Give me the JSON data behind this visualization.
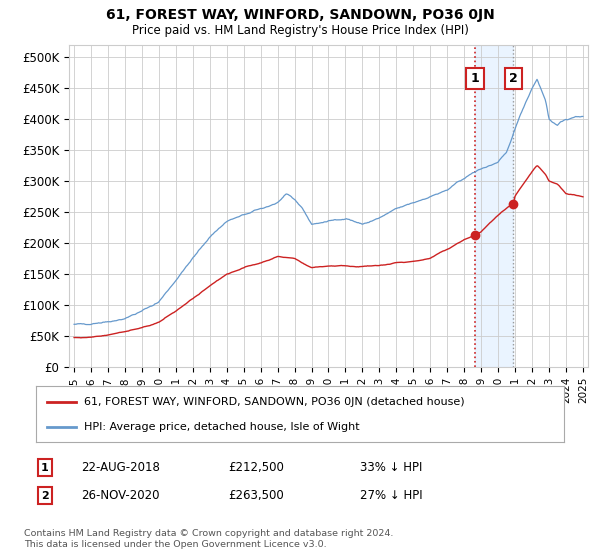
{
  "title": "61, FOREST WAY, WINFORD, SANDOWN, PO36 0JN",
  "subtitle": "Price paid vs. HM Land Registry's House Price Index (HPI)",
  "legend_line1": "61, FOREST WAY, WINFORD, SANDOWN, PO36 0JN (detached house)",
  "legend_line2": "HPI: Average price, detached house, Isle of Wight",
  "annotation1": {
    "label": "1",
    "date": "22-AUG-2018",
    "price": "£212,500",
    "hpi": "33% ↓ HPI",
    "year": 2018.64,
    "value": 212500
  },
  "annotation2": {
    "label": "2",
    "date": "26-NOV-2020",
    "price": "£263,500",
    "hpi": "27% ↓ HPI",
    "year": 2020.9,
    "value": 263500
  },
  "footer": "Contains HM Land Registry data © Crown copyright and database right 2024.\nThis data is licensed under the Open Government Licence v3.0.",
  "hpi_color": "#6699cc",
  "price_color": "#cc2222",
  "annotation_box_color": "#cc2222",
  "vline1_color": "#cc2222",
  "vline2_color": "#999999",
  "shaded_color": "#ddeeff",
  "ylim": [
    0,
    520000
  ],
  "yticks": [
    0,
    50000,
    100000,
    150000,
    200000,
    250000,
    300000,
    350000,
    400000,
    450000,
    500000
  ],
  "xlim_start": 1994.7,
  "xlim_end": 2025.3,
  "background_color": "#ffffff",
  "grid_color": "#cccccc",
  "hpi_anchors_x": [
    1995,
    1996,
    1997,
    1998,
    1999,
    2000,
    2001,
    2002,
    2003,
    2004,
    2005,
    2006,
    2007,
    2007.5,
    2008,
    2008.5,
    2009,
    2010,
    2011,
    2012,
    2013,
    2014,
    2015,
    2016,
    2017,
    2018,
    2019,
    2020,
    2020.5,
    2021,
    2021.5,
    2022,
    2022.3,
    2022.8,
    2023,
    2023.5,
    2024,
    2025
  ],
  "hpi_anchors_y": [
    68000,
    70000,
    73000,
    78000,
    90000,
    105000,
    140000,
    175000,
    210000,
    235000,
    245000,
    255000,
    265000,
    278000,
    270000,
    255000,
    230000,
    235000,
    240000,
    230000,
    240000,
    255000,
    265000,
    275000,
    285000,
    305000,
    320000,
    330000,
    345000,
    385000,
    420000,
    450000,
    465000,
    430000,
    400000,
    390000,
    400000,
    405000
  ],
  "price_anchors_x": [
    1995,
    1996,
    1997,
    1998,
    1999,
    2000,
    2001,
    2002,
    2003,
    2004,
    2005,
    2006,
    2007,
    2008,
    2009,
    2010,
    2011,
    2012,
    2013,
    2014,
    2015,
    2016,
    2017,
    2018,
    2018.64,
    2019,
    2020,
    2020.9,
    2021,
    2022,
    2022.3,
    2022.8,
    2023,
    2023.5,
    2024,
    2025
  ],
  "price_anchors_y": [
    47000,
    48000,
    52000,
    57000,
    63000,
    72000,
    90000,
    110000,
    130000,
    150000,
    160000,
    168000,
    178000,
    175000,
    160000,
    163000,
    163000,
    162000,
    163000,
    168000,
    170000,
    175000,
    190000,
    205000,
    212500,
    218000,
    245000,
    263500,
    275000,
    315000,
    325000,
    310000,
    300000,
    295000,
    280000,
    275000
  ]
}
